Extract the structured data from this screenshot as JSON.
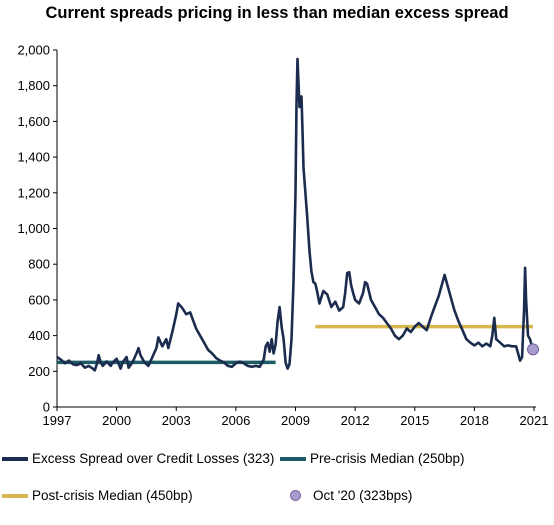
{
  "chart_data": {
    "type": "line",
    "title": "Current spreads pricing in less than median excess spread",
    "xlabel": "",
    "ylabel": "",
    "xlim": [
      1997,
      2021.1
    ],
    "ylim": [
      0,
      2000
    ],
    "x_ticks": [
      "1997",
      "2000",
      "2003",
      "2006",
      "2009",
      "2012",
      "2015",
      "2018",
      "2021"
    ],
    "y_ticks": [
      "0",
      "200",
      "400",
      "600",
      "800",
      "1,000",
      "1,200",
      "1,400",
      "1,600",
      "1,800",
      "2,000"
    ],
    "series": [
      {
        "name": "Excess Spread over Credit Losses (323)",
        "color": "#1b2c4e",
        "points": [
          [
            1997.0,
            280
          ],
          [
            1997.2,
            265
          ],
          [
            1997.4,
            245
          ],
          [
            1997.6,
            260
          ],
          [
            1997.8,
            240
          ],
          [
            1998.0,
            235
          ],
          [
            1998.2,
            245
          ],
          [
            1998.4,
            220
          ],
          [
            1998.6,
            230
          ],
          [
            1998.8,
            215
          ],
          [
            1998.9,
            205
          ],
          [
            1999.0,
            240
          ],
          [
            1999.1,
            290
          ],
          [
            1999.2,
            250
          ],
          [
            1999.3,
            230
          ],
          [
            1999.5,
            255
          ],
          [
            1999.7,
            230
          ],
          [
            1999.8,
            250
          ],
          [
            2000.0,
            270
          ],
          [
            2000.2,
            215
          ],
          [
            2000.3,
            250
          ],
          [
            2000.5,
            280
          ],
          [
            2000.6,
            220
          ],
          [
            2000.8,
            250
          ],
          [
            2001.0,
            300
          ],
          [
            2001.1,
            330
          ],
          [
            2001.2,
            290
          ],
          [
            2001.4,
            250
          ],
          [
            2001.6,
            230
          ],
          [
            2001.8,
            280
          ],
          [
            2002.0,
            330
          ],
          [
            2002.1,
            390
          ],
          [
            2002.3,
            340
          ],
          [
            2002.5,
            380
          ],
          [
            2002.6,
            330
          ],
          [
            2002.8,
            420
          ],
          [
            2002.9,
            470
          ],
          [
            2003.0,
            520
          ],
          [
            2003.1,
            580
          ],
          [
            2003.3,
            555
          ],
          [
            2003.5,
            520
          ],
          [
            2003.7,
            530
          ],
          [
            2003.9,
            470
          ],
          [
            2004.0,
            440
          ],
          [
            2004.2,
            400
          ],
          [
            2004.4,
            360
          ],
          [
            2004.6,
            320
          ],
          [
            2004.8,
            300
          ],
          [
            2005.0,
            275
          ],
          [
            2005.2,
            260
          ],
          [
            2005.4,
            250
          ],
          [
            2005.6,
            230
          ],
          [
            2005.8,
            225
          ],
          [
            2006.0,
            245
          ],
          [
            2006.2,
            255
          ],
          [
            2006.4,
            245
          ],
          [
            2006.6,
            230
          ],
          [
            2006.8,
            225
          ],
          [
            2007.0,
            230
          ],
          [
            2007.2,
            225
          ],
          [
            2007.4,
            265
          ],
          [
            2007.5,
            340
          ],
          [
            2007.6,
            360
          ],
          [
            2007.7,
            310
          ],
          [
            2007.8,
            380
          ],
          [
            2007.9,
            300
          ],
          [
            2008.0,
            350
          ],
          [
            2008.1,
            480
          ],
          [
            2008.2,
            560
          ],
          [
            2008.3,
            450
          ],
          [
            2008.4,
            380
          ],
          [
            2008.5,
            250
          ],
          [
            2008.6,
            215
          ],
          [
            2008.7,
            240
          ],
          [
            2008.8,
            380
          ],
          [
            2008.9,
            700
          ],
          [
            2009.0,
            1200
          ],
          [
            2009.05,
            1700
          ],
          [
            2009.1,
            1950
          ],
          [
            2009.2,
            1680
          ],
          [
            2009.3,
            1740
          ],
          [
            2009.35,
            1550
          ],
          [
            2009.4,
            1340
          ],
          [
            2009.5,
            1200
          ],
          [
            2009.6,
            1050
          ],
          [
            2009.7,
            880
          ],
          [
            2009.8,
            760
          ],
          [
            2009.9,
            700
          ],
          [
            2010.0,
            690
          ],
          [
            2010.1,
            640
          ],
          [
            2010.2,
            580
          ],
          [
            2010.4,
            650
          ],
          [
            2010.6,
            630
          ],
          [
            2010.8,
            560
          ],
          [
            2011.0,
            590
          ],
          [
            2011.2,
            540
          ],
          [
            2011.4,
            560
          ],
          [
            2011.5,
            640
          ],
          [
            2011.6,
            750
          ],
          [
            2011.7,
            755
          ],
          [
            2011.8,
            680
          ],
          [
            2011.9,
            640
          ],
          [
            2012.0,
            600
          ],
          [
            2012.2,
            580
          ],
          [
            2012.4,
            640
          ],
          [
            2012.5,
            700
          ],
          [
            2012.6,
            690
          ],
          [
            2012.8,
            600
          ],
          [
            2013.0,
            560
          ],
          [
            2013.2,
            520
          ],
          [
            2013.4,
            500
          ],
          [
            2013.6,
            470
          ],
          [
            2013.8,
            440
          ],
          [
            2014.0,
            400
          ],
          [
            2014.2,
            380
          ],
          [
            2014.4,
            400
          ],
          [
            2014.6,
            440
          ],
          [
            2014.8,
            420
          ],
          [
            2015.0,
            450
          ],
          [
            2015.2,
            470
          ],
          [
            2015.4,
            450
          ],
          [
            2015.6,
            430
          ],
          [
            2015.8,
            500
          ],
          [
            2016.0,
            560
          ],
          [
            2016.2,
            620
          ],
          [
            2016.4,
            700
          ],
          [
            2016.5,
            740
          ],
          [
            2016.6,
            700
          ],
          [
            2016.8,
            620
          ],
          [
            2017.0,
            540
          ],
          [
            2017.2,
            480
          ],
          [
            2017.4,
            430
          ],
          [
            2017.6,
            380
          ],
          [
            2017.8,
            360
          ],
          [
            2018.0,
            345
          ],
          [
            2018.2,
            360
          ],
          [
            2018.4,
            340
          ],
          [
            2018.6,
            355
          ],
          [
            2018.8,
            340
          ],
          [
            2018.9,
            400
          ],
          [
            2019.0,
            500
          ],
          [
            2019.1,
            380
          ],
          [
            2019.3,
            360
          ],
          [
            2019.5,
            340
          ],
          [
            2019.7,
            345
          ],
          [
            2019.9,
            340
          ],
          [
            2020.1,
            340
          ],
          [
            2020.2,
            300
          ],
          [
            2020.3,
            260
          ],
          [
            2020.4,
            280
          ],
          [
            2020.5,
            550
          ],
          [
            2020.55,
            780
          ],
          [
            2020.6,
            600
          ],
          [
            2020.7,
            400
          ],
          [
            2020.8,
            380
          ],
          [
            2020.9,
            340
          ],
          [
            2020.95,
            323
          ]
        ]
      },
      {
        "name": "Pre-crisis Median (250bp)",
        "color": "#1d5b66",
        "value": 250,
        "x_range": [
          1997,
          2008
        ]
      },
      {
        "name": "Post-crisis Median (450bp)",
        "color": "#d8b650",
        "value": 450,
        "x_range": [
          2010,
          2020.95
        ]
      },
      {
        "name": "Oct '20 (323bps)",
        "color": "#a99ad0",
        "point": [
          2020.95,
          323
        ]
      }
    ]
  }
}
